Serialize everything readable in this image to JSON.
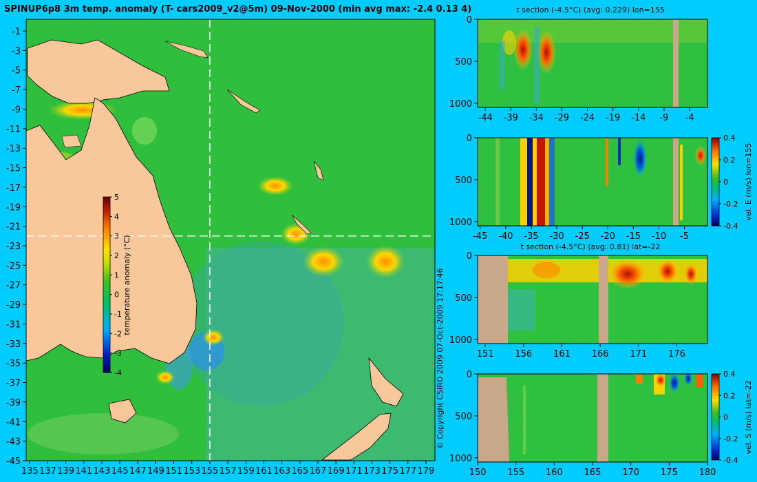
{
  "title": "SPINUP6p8 3m temp. anomaly (T- cars2009_v2@5m) 09-Nov-2000 (min avg max: -2.4 0.13 4)",
  "copyright": "© Copyright CSIRO 2009   07-Oct-2009 17:17:46",
  "colors": {
    "background": "#00ccff",
    "land": "#f8c89a",
    "land_section": "#c8a888",
    "guide": "#ffffff",
    "coast": "#000000"
  },
  "chart_data": [
    {
      "type": "heatmap",
      "title": "SPINUP6p8 3m temp. anomaly (T- cars2009_v2@5m) 09-Nov-2000 (min avg max: -2.4 0.13 4)",
      "x_ticks": [
        135,
        137,
        139,
        141,
        143,
        145,
        147,
        149,
        151,
        153,
        155,
        157,
        159,
        161,
        163,
        165,
        167,
        169,
        171,
        173,
        175,
        177,
        179
      ],
      "y_ticks": [
        -1,
        -3,
        -5,
        -7,
        -9,
        -11,
        -13,
        -15,
        -17,
        -19,
        -21,
        -23,
        -25,
        -27,
        -29,
        -31,
        -33,
        -35,
        -37,
        -39,
        -41,
        -43,
        -45
      ],
      "xlim": [
        134.6,
        180
      ],
      "ylim": [
        -45,
        0.2
      ],
      "guide_lon": 155,
      "guide_lat": -22,
      "colorbar": {
        "label": "temperature anomaly (°C)",
        "ticks": [
          5,
          4,
          3,
          2,
          1,
          0,
          -1,
          -2,
          -3,
          -4
        ],
        "range": [
          -4,
          5
        ]
      }
    },
    {
      "type": "heatmap",
      "title": "t section (-4.5°C) (avg: 0.229) lon=155",
      "x_ticks": [
        -44,
        -39,
        -34,
        -29,
        -24,
        -19,
        -14,
        -9,
        -4
      ],
      "y_ticks": [
        0,
        500,
        1000
      ],
      "xlim": [
        -45.5,
        -0.5
      ],
      "ylim": [
        1050,
        0
      ]
    },
    {
      "type": "heatmap",
      "title": "",
      "x_ticks": [
        -45,
        -40,
        -35,
        -30,
        -25,
        -20,
        -15,
        -10,
        -5
      ],
      "y_ticks": [
        0,
        500,
        1000
      ],
      "xlim": [
        -45.5,
        -0.5
      ],
      "ylim": [
        1050,
        0
      ],
      "colorbar": {
        "label": "vel. E (m/s) lon=155",
        "ticks": [
          0.4,
          0.2,
          0,
          -0.2,
          -0.4
        ],
        "range": [
          -0.4,
          0.4
        ]
      }
    },
    {
      "type": "heatmap",
      "title": "t section (-4.5°C) (avg: 0.81) lat=-22",
      "x_ticks": [
        151,
        156,
        161,
        166,
        171,
        176
      ],
      "y_ticks": [
        0,
        500,
        1000
      ],
      "xlim": [
        150,
        180
      ],
      "ylim": [
        1050,
        0
      ]
    },
    {
      "type": "heatmap",
      "title": "",
      "x_ticks": [
        150,
        155,
        160,
        165,
        170,
        175,
        180
      ],
      "y_ticks": [
        0,
        500,
        1000
      ],
      "xlim": [
        150,
        180
      ],
      "ylim": [
        1050,
        0
      ],
      "colorbar": {
        "label": "vel. S (m/s) lat=-22",
        "ticks": [
          0.4,
          0.2,
          0,
          -0.2,
          -0.4
        ],
        "range": [
          -0.4,
          0.4
        ]
      }
    }
  ]
}
